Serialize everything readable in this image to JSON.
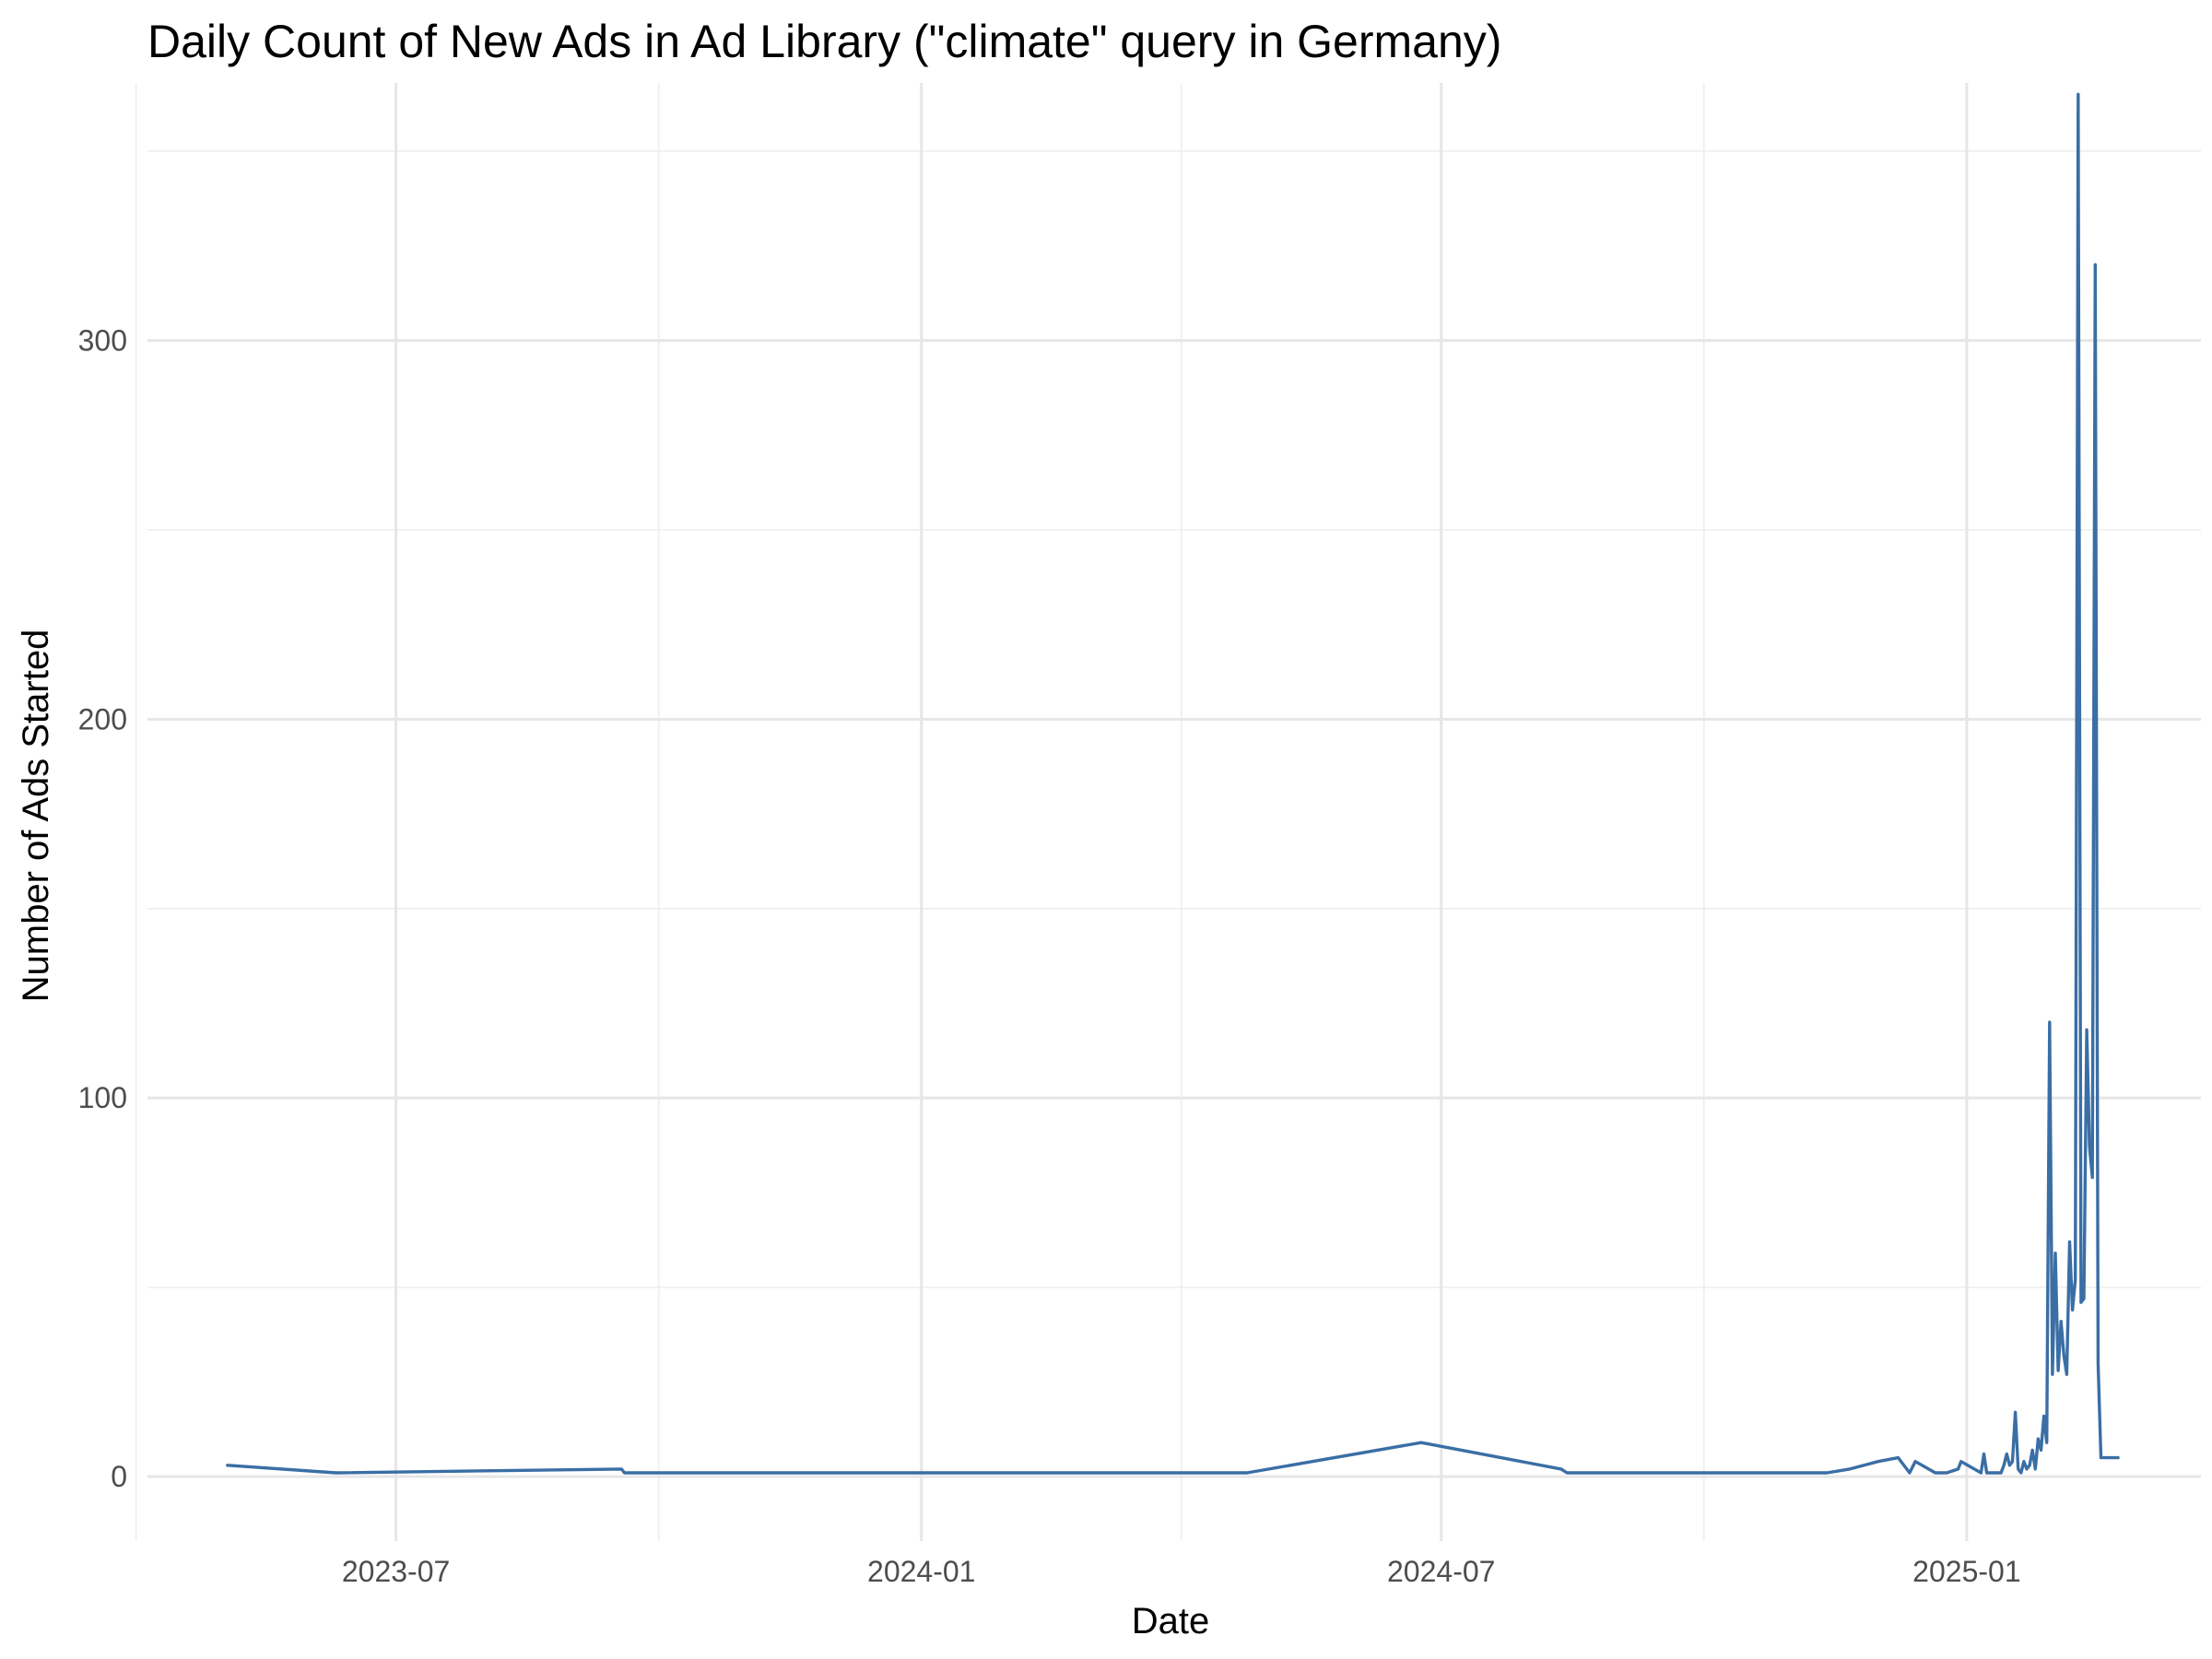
{
  "chart_data": {
    "type": "line",
    "title": "Daily Count of New Ads in Ad Library (\"climate\" query in Germany)",
    "xlabel": "Date",
    "ylabel": "Number of Ads Started",
    "x_axis_type": "date",
    "xlim": [
      "2023-04-05",
      "2025-03-24"
    ],
    "ylim": [
      -17,
      368
    ],
    "x_major_ticks": [
      "2023-07-01",
      "2024-01-01",
      "2024-07-01",
      "2025-01-01"
    ],
    "x_tick_labels": [
      "2023-07",
      "2024-01",
      "2024-07",
      "2025-01"
    ],
    "x_minor_ticks": [
      "2023-04-01",
      "2023-10-01",
      "2024-04-01",
      "2024-10-01"
    ],
    "y_major_ticks": [
      0,
      100,
      200,
      300
    ],
    "y_tick_labels": [
      "0",
      "100",
      "200",
      "300"
    ],
    "y_minor_ticks": [
      50,
      150,
      250,
      350
    ],
    "grid": true,
    "legend": "none",
    "series_color": "#3a6ea5",
    "series": [
      {
        "x": [
          "2023-05-03",
          "2023-06-10",
          "2023-09-18",
          "2023-09-19",
          "2024-04-24",
          "2024-06-24",
          "2024-08-12",
          "2024-08-14",
          "2024-11-13",
          "2024-11-21",
          "2024-12-01",
          "2024-12-08",
          "2024-12-11",
          "2024-12-12",
          "2024-12-14",
          "2024-12-21",
          "2024-12-25",
          "2024-12-29",
          "2024-12-30",
          "2025-01-06",
          "2025-01-07",
          "2025-01-08",
          "2025-01-10",
          "2025-01-12",
          "2025-01-13",
          "2025-01-14",
          "2025-01-15",
          "2025-01-16",
          "2025-01-17",
          "2025-01-18",
          "2025-01-19",
          "2025-01-20",
          "2025-01-21",
          "2025-01-22",
          "2025-01-23",
          "2025-01-24",
          "2025-01-25",
          "2025-01-26",
          "2025-01-27",
          "2025-01-28",
          "2025-01-29",
          "2025-01-30",
          "2025-01-31",
          "2025-02-01",
          "2025-02-02",
          "2025-02-03",
          "2025-02-04",
          "2025-02-05",
          "2025-02-06",
          "2025-02-07",
          "2025-02-08",
          "2025-02-09",
          "2025-02-10",
          "2025-02-11",
          "2025-02-12",
          "2025-02-13",
          "2025-02-14",
          "2025-02-15",
          "2025-02-16",
          "2025-02-17",
          "2025-02-18",
          "2025-02-19",
          "2025-02-20",
          "2025-02-21",
          "2025-02-22",
          "2025-02-23"
        ],
        "y": [
          3,
          1,
          2,
          1,
          1,
          9,
          2,
          1,
          1,
          2,
          4,
          5,
          2,
          1,
          4,
          1,
          1,
          2,
          4,
          1,
          6,
          1,
          1,
          1,
          1,
          3,
          6,
          3,
          4,
          17,
          2,
          1,
          4,
          2,
          3,
          7,
          2,
          10,
          7,
          16,
          9,
          120,
          27,
          59,
          28,
          41,
          32,
          27,
          62,
          44,
          52,
          365,
          46,
          47,
          118,
          87,
          79,
          320,
          30,
          5,
          5,
          5,
          5,
          5,
          5,
          5
        ]
      }
    ]
  }
}
